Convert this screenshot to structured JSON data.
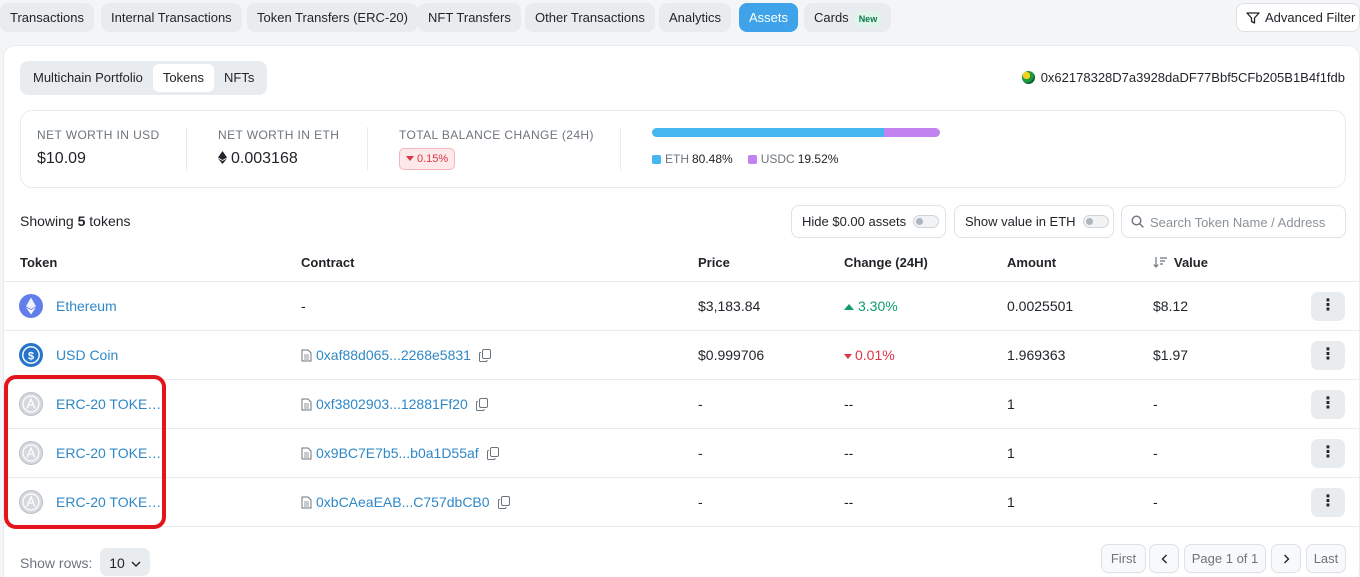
{
  "tabs": [
    {
      "label": "Transactions"
    },
    {
      "label": "Internal Transactions"
    },
    {
      "label": "Token Transfers (ERC-20)"
    },
    {
      "label": "NFT Transfers"
    },
    {
      "label": "Other Transactions"
    },
    {
      "label": "Analytics"
    },
    {
      "label": "Assets",
      "active": true
    },
    {
      "label": "Cards",
      "badge": "New"
    }
  ],
  "advanced_filter_label": "Advanced Filter",
  "subtabs": [
    "Multichain Portfolio",
    "Tokens",
    "NFTs"
  ],
  "active_subtab": "Tokens",
  "address": "0x62178328D7a3928daDF77Bbf5CFb205B1B4f1fdb",
  "summary": {
    "net_worth_usd_label": "NET WORTH IN USD",
    "net_worth_usd": "$10.09",
    "net_worth_eth_label": "NET WORTH IN ETH",
    "net_worth_eth": "0.003168",
    "balance_change_label": "TOTAL BALANCE CHANGE (24H)",
    "balance_change": "0.15%",
    "allocation": [
      {
        "label": "ETH",
        "pct_text": "80.48%",
        "pct": 80.48,
        "color": "#44b7f0"
      },
      {
        "label": "USDC",
        "pct_text": "19.52%",
        "pct": 19.52,
        "color": "#c183ef"
      }
    ]
  },
  "showing": {
    "prefix": "Showing",
    "count": "5",
    "suffix": "tokens"
  },
  "controls": {
    "hide_zero_label": "Hide $0.00 assets",
    "show_eth_label": "Show value in ETH",
    "search_placeholder": "Search Token Name / Address"
  },
  "columns": {
    "token": "Token",
    "contract": "Contract",
    "price": "Price",
    "change": "Change (24H)",
    "amount": "Amount",
    "value": "Value"
  },
  "rows": [
    {
      "name": "Ethereum",
      "logo": "ethereum-logo",
      "contract": "-",
      "price": "$3,183.84",
      "change": "3.30%",
      "change_dir": "up",
      "amount": "0.0025501",
      "value": "$8.12"
    },
    {
      "name": "USD Coin",
      "logo": "usdc-logo",
      "contract": "0xaf88d065...2268e5831",
      "price": "$0.999706",
      "change": "0.01%",
      "change_dir": "down",
      "amount": "1.969363",
      "value": "$1.97"
    },
    {
      "name": "ERC-20 TOKEN...",
      "logo": "generic-token-logo",
      "contract": "0xf3802903...12881Ff20",
      "price": "-",
      "change": "--",
      "change_dir": "none",
      "amount": "1",
      "value": "-"
    },
    {
      "name": "ERC-20 TOKEN...",
      "logo": "generic-token-logo",
      "contract": "0x9BC7E7b5...b0a1D55af",
      "price": "-",
      "change": "--",
      "change_dir": "none",
      "amount": "1",
      "value": "-"
    },
    {
      "name": "ERC-20 TOKEN...",
      "logo": "generic-token-logo",
      "contract": "0xbCAeaEAB...C757dbCB0",
      "price": "-",
      "change": "--",
      "change_dir": "none",
      "amount": "1",
      "value": "-"
    }
  ],
  "footer": {
    "show_rows_label": "Show rows:",
    "rows_value": "10",
    "first": "First",
    "page_info": "Page 1 of 1",
    "last": "Last"
  },
  "colors": {
    "accent": "#3ea3e8",
    "link": "#2f88c6",
    "up": "#0f9d6b",
    "down": "#dc3545",
    "highlight": "#e3141c"
  }
}
